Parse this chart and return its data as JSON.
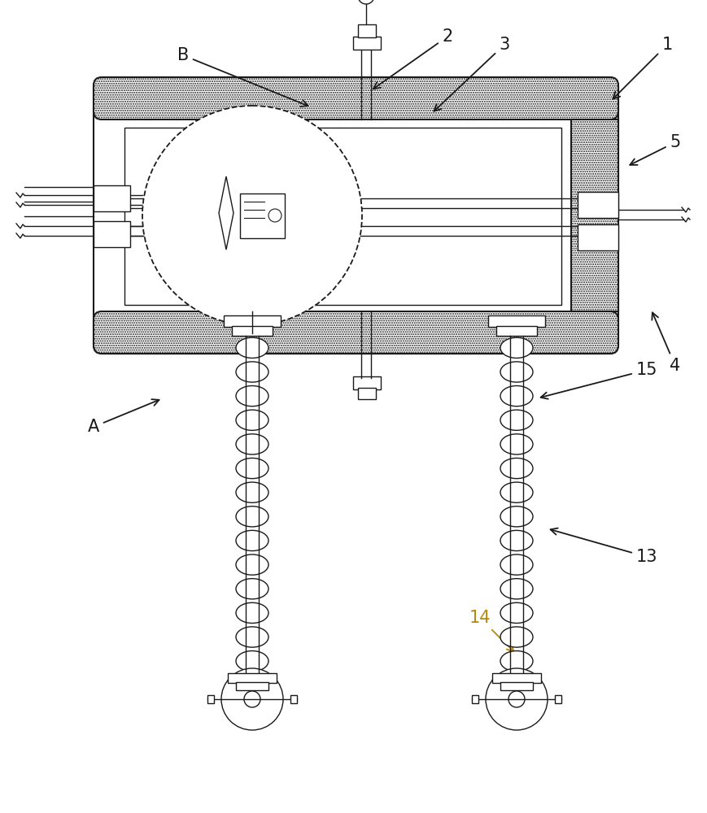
{
  "bg_color": "#ffffff",
  "line_color": "#1a1a1a",
  "figsize": [
    8.69,
    10.0
  ],
  "dpi": 100,
  "label_14_color": "#b8860b"
}
